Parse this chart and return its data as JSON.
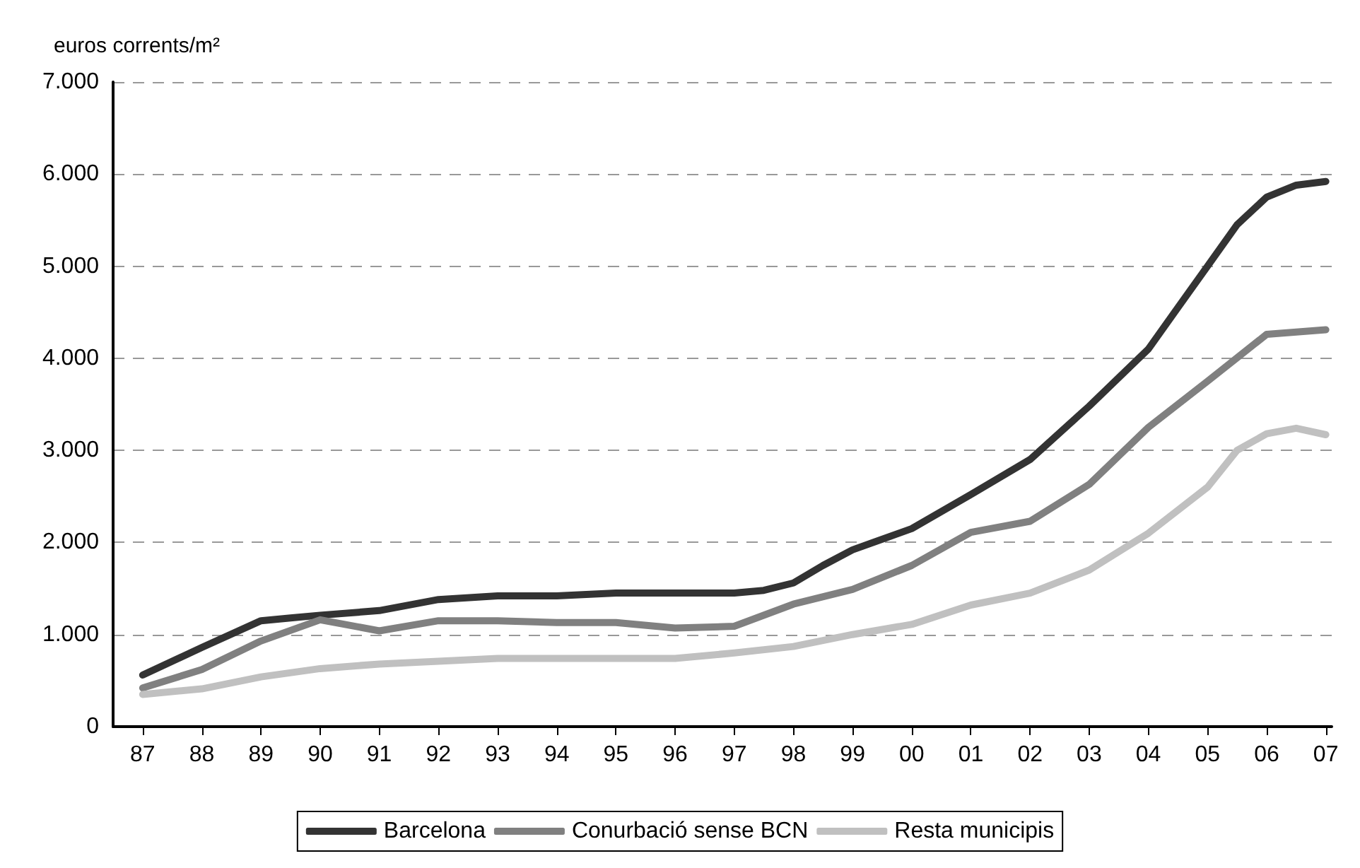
{
  "chart_data": {
    "type": "line",
    "ylabel": "euros corrents/m²",
    "xlim": [
      1986.5,
      2007.1
    ],
    "xticks": [
      {
        "value": 1987,
        "label": "87"
      },
      {
        "value": 1988,
        "label": "88"
      },
      {
        "value": 1989,
        "label": "89"
      },
      {
        "value": 1990,
        "label": "90"
      },
      {
        "value": 1991,
        "label": "91"
      },
      {
        "value": 1992,
        "label": "92"
      },
      {
        "value": 1993,
        "label": "93"
      },
      {
        "value": 1994,
        "label": "94"
      },
      {
        "value": 1995,
        "label": "95"
      },
      {
        "value": 1996,
        "label": "96"
      },
      {
        "value": 1997,
        "label": "97"
      },
      {
        "value": 1998,
        "label": "98"
      },
      {
        "value": 1999,
        "label": "99"
      },
      {
        "value": 2000,
        "label": "00"
      },
      {
        "value": 2001,
        "label": "01"
      },
      {
        "value": 2002,
        "label": "02"
      },
      {
        "value": 2003,
        "label": "03"
      },
      {
        "value": 2004,
        "label": "04"
      },
      {
        "value": 2005,
        "label": "05"
      },
      {
        "value": 2006,
        "label": "06"
      },
      {
        "value": 2007,
        "label": "07"
      }
    ],
    "ylim": [
      0,
      7000
    ],
    "yticks": [
      0,
      {
        "value": 1000,
        "label": "1.000"
      },
      {
        "value": 2000,
        "label": "2.000"
      },
      {
        "value": 3000,
        "label": "3.000"
      },
      {
        "value": 4000,
        "label": "4.000"
      },
      {
        "value": 5000,
        "label": "5.000"
      },
      {
        "value": 6000,
        "label": "6.000"
      },
      {
        "value": 7000,
        "label": "7.000"
      }
    ],
    "grid": "y",
    "legend": "bottom",
    "marker": "none",
    "line_style": "solid",
    "series": [
      {
        "name": "Barcelona",
        "color": "#333333",
        "x": [
          1987,
          1988,
          1989,
          1989.5,
          1990,
          1991,
          1992,
          1993,
          1994,
          1995,
          1996,
          1997,
          1997.5,
          1998,
          1998.5,
          1999,
          2000,
          2001,
          2002,
          2003,
          2004,
          2004.5,
          2005,
          2005.5,
          2006,
          2006.5,
          2007
        ],
        "values": [
          560,
          860,
          1150,
          1180,
          1210,
          1260,
          1380,
          1420,
          1420,
          1450,
          1450,
          1450,
          1480,
          1560,
          1750,
          1920,
          2150,
          2520,
          2900,
          3480,
          4100,
          4550,
          5000,
          5450,
          5750,
          5880,
          5920
        ]
      },
      {
        "name": "Conurbació sense BCN",
        "color": "#808080",
        "x": [
          1987,
          1988,
          1989,
          1990,
          1991,
          1992,
          1993,
          1994,
          1995,
          1996,
          1997,
          1998,
          1999,
          2000,
          2001,
          2002,
          2003,
          2004,
          2005,
          2006,
          2007
        ],
        "values": [
          420,
          620,
          930,
          1160,
          1040,
          1150,
          1150,
          1130,
          1130,
          1070,
          1090,
          1330,
          1490,
          1750,
          2110,
          2230,
          2630,
          3250,
          3750,
          4260,
          4310
        ]
      },
      {
        "name": "Resta municipis",
        "color": "#c0c0c0",
        "x": [
          1987,
          1988,
          1989,
          1990,
          1991,
          1992,
          1993,
          1994,
          1995,
          1996,
          1997,
          1998,
          1999,
          2000,
          2001,
          2002,
          2003,
          2004,
          2005,
          2005.5,
          2006,
          2006.5,
          2007
        ],
        "values": [
          350,
          410,
          540,
          630,
          680,
          710,
          740,
          740,
          740,
          740,
          800,
          870,
          1000,
          1110,
          1320,
          1450,
          1700,
          2100,
          2600,
          3000,
          3180,
          3240,
          3170
        ]
      }
    ]
  }
}
